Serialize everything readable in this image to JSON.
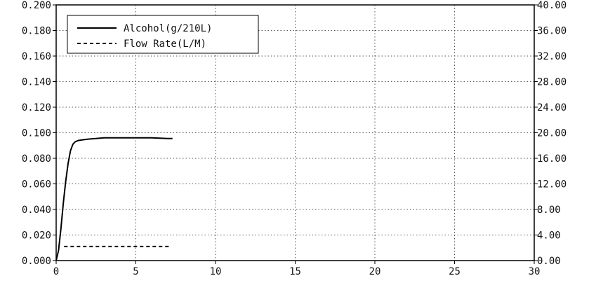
{
  "chart_data": {
    "type": "line",
    "title": "",
    "xlabel": "",
    "ylabel": "",
    "y2label": "",
    "xlim": [
      0,
      30
    ],
    "ylim": [
      0,
      0.2
    ],
    "y2lim": [
      0,
      40
    ],
    "x_ticks": [
      0,
      5,
      10,
      15,
      20,
      25,
      30
    ],
    "x_tick_labels": [
      "0",
      "5",
      "10",
      "15",
      "20",
      "25",
      "30"
    ],
    "y_ticks": [
      0,
      0.02,
      0.04,
      0.06,
      0.08,
      0.1,
      0.12,
      0.14,
      0.16,
      0.18,
      0.2
    ],
    "y_tick_labels": [
      "0.000",
      "0.020",
      "0.040",
      "0.060",
      "0.080",
      "0.100",
      "0.120",
      "0.140",
      "0.160",
      "0.180",
      "0.200"
    ],
    "y2_ticks": [
      0,
      4,
      8,
      12,
      16,
      20,
      24,
      28,
      32,
      36,
      40
    ],
    "y2_tick_labels": [
      "0.00",
      "4.00",
      "8.00",
      "12.00",
      "16.00",
      "20.00",
      "24.00",
      "28.00",
      "32.00",
      "36.00",
      "40.00"
    ],
    "grid": true,
    "legend_position": "top-left",
    "series": [
      {
        "name": "Alcohol(g/210L)",
        "axis": "left",
        "style": "solid",
        "color": "#000000",
        "x": [
          0.0,
          0.15,
          0.3,
          0.45,
          0.6,
          0.75,
          0.9,
          1.05,
          1.2,
          1.4,
          1.7,
          2.0,
          2.5,
          3.0,
          4.0,
          5.0,
          6.0,
          7.0,
          7.3
        ],
        "y": [
          0.0,
          0.008,
          0.025,
          0.045,
          0.062,
          0.076,
          0.086,
          0.091,
          0.093,
          0.094,
          0.0945,
          0.095,
          0.0955,
          0.096,
          0.096,
          0.096,
          0.096,
          0.0955,
          0.0955
        ]
      },
      {
        "name": "Flow Rate(L/M)",
        "axis": "right",
        "style": "dashed",
        "color": "#000000",
        "x": [
          0.5,
          2.0,
          4.0,
          6.0,
          7.1
        ],
        "y": [
          2.2,
          2.2,
          2.2,
          2.2,
          2.2
        ]
      }
    ]
  }
}
